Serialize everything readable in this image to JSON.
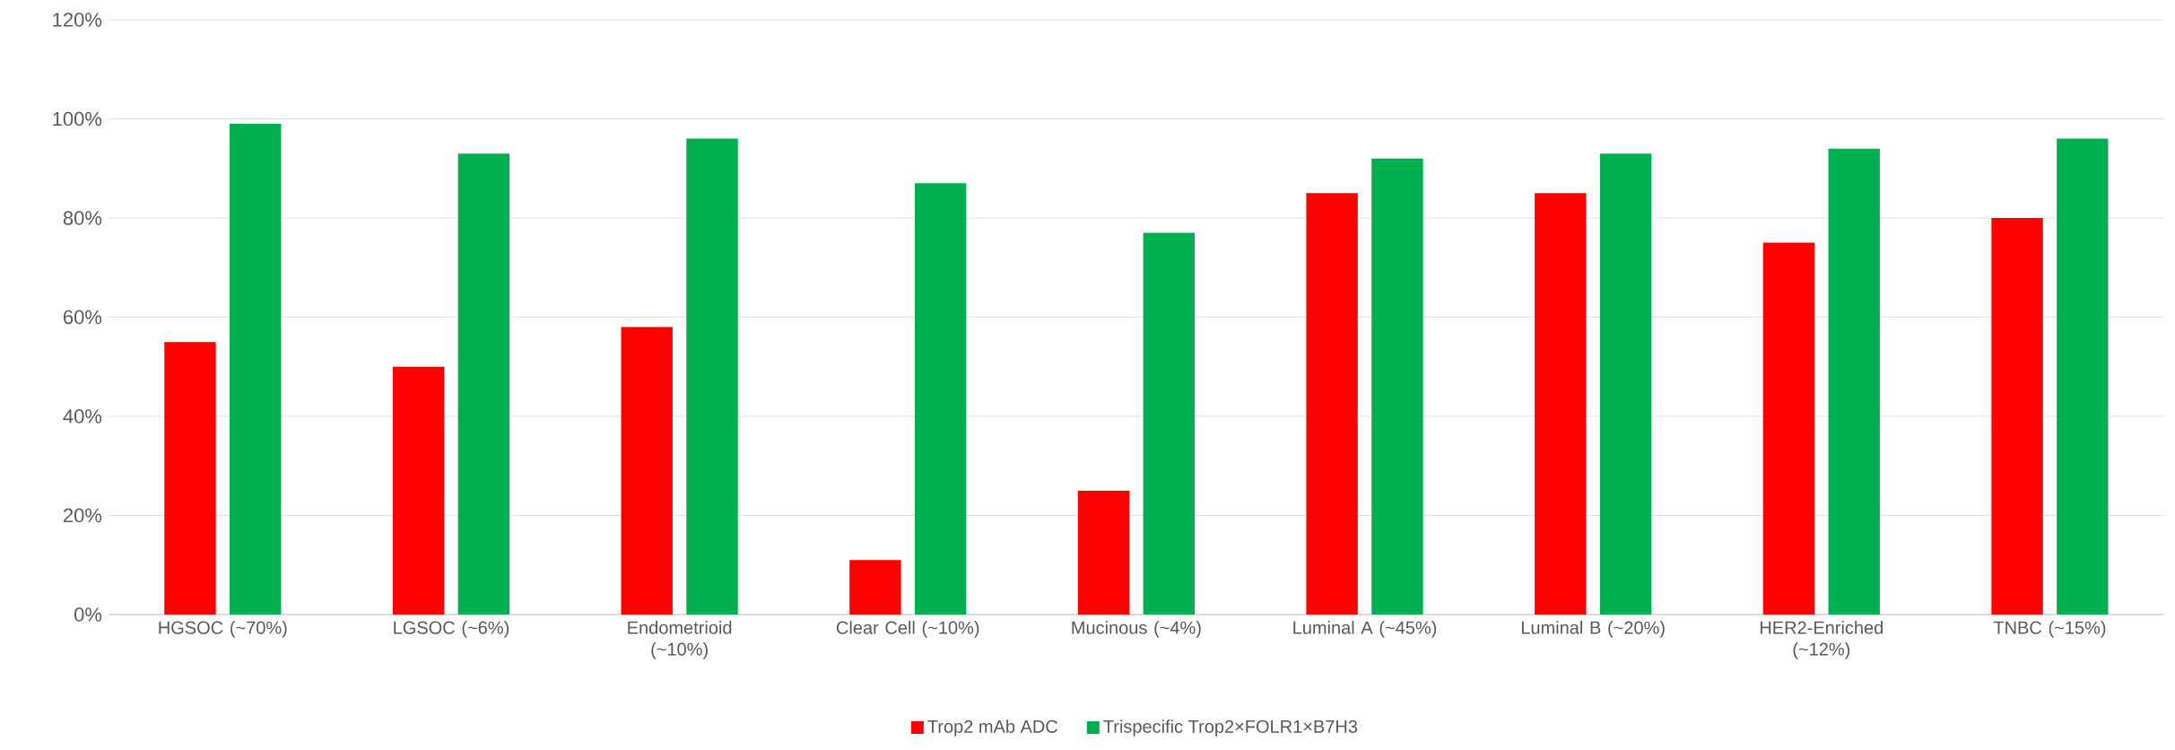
{
  "chart_data": {
    "type": "bar",
    "categories": [
      "HGSOC (~70%)",
      "LGSOC (~6%)",
      "Endometrioid (~10%)",
      "Clear Cell (~10%)",
      "Mucinous (~4%)",
      "Luminal A (~45%)",
      "Luminal B (~20%)",
      "HER2-Enriched (~12%)",
      "TNBC (~15%)"
    ],
    "series": [
      {
        "name": "Trop2 mAb ADC",
        "color": "#ff0000",
        "values": [
          55,
          50,
          58,
          11,
          25,
          85,
          85,
          75,
          80
        ]
      },
      {
        "name": "Trispecific Trop2×FOLR1×B7H3",
        "color": "#00b050",
        "values": [
          99,
          93,
          96,
          87,
          77,
          92,
          93,
          94,
          96
        ]
      }
    ],
    "ylim": [
      0,
      120
    ],
    "yticks": [
      {
        "value": 0,
        "label": "0%"
      },
      {
        "value": 20,
        "label": "20%"
      },
      {
        "value": 40,
        "label": "40%"
      },
      {
        "value": 60,
        "label": "60%"
      },
      {
        "value": 80,
        "label": "80%"
      },
      {
        "value": 100,
        "label": "100%"
      },
      {
        "value": 120,
        "label": "120%"
      }
    ],
    "grid": "y",
    "legend": "bottom"
  }
}
